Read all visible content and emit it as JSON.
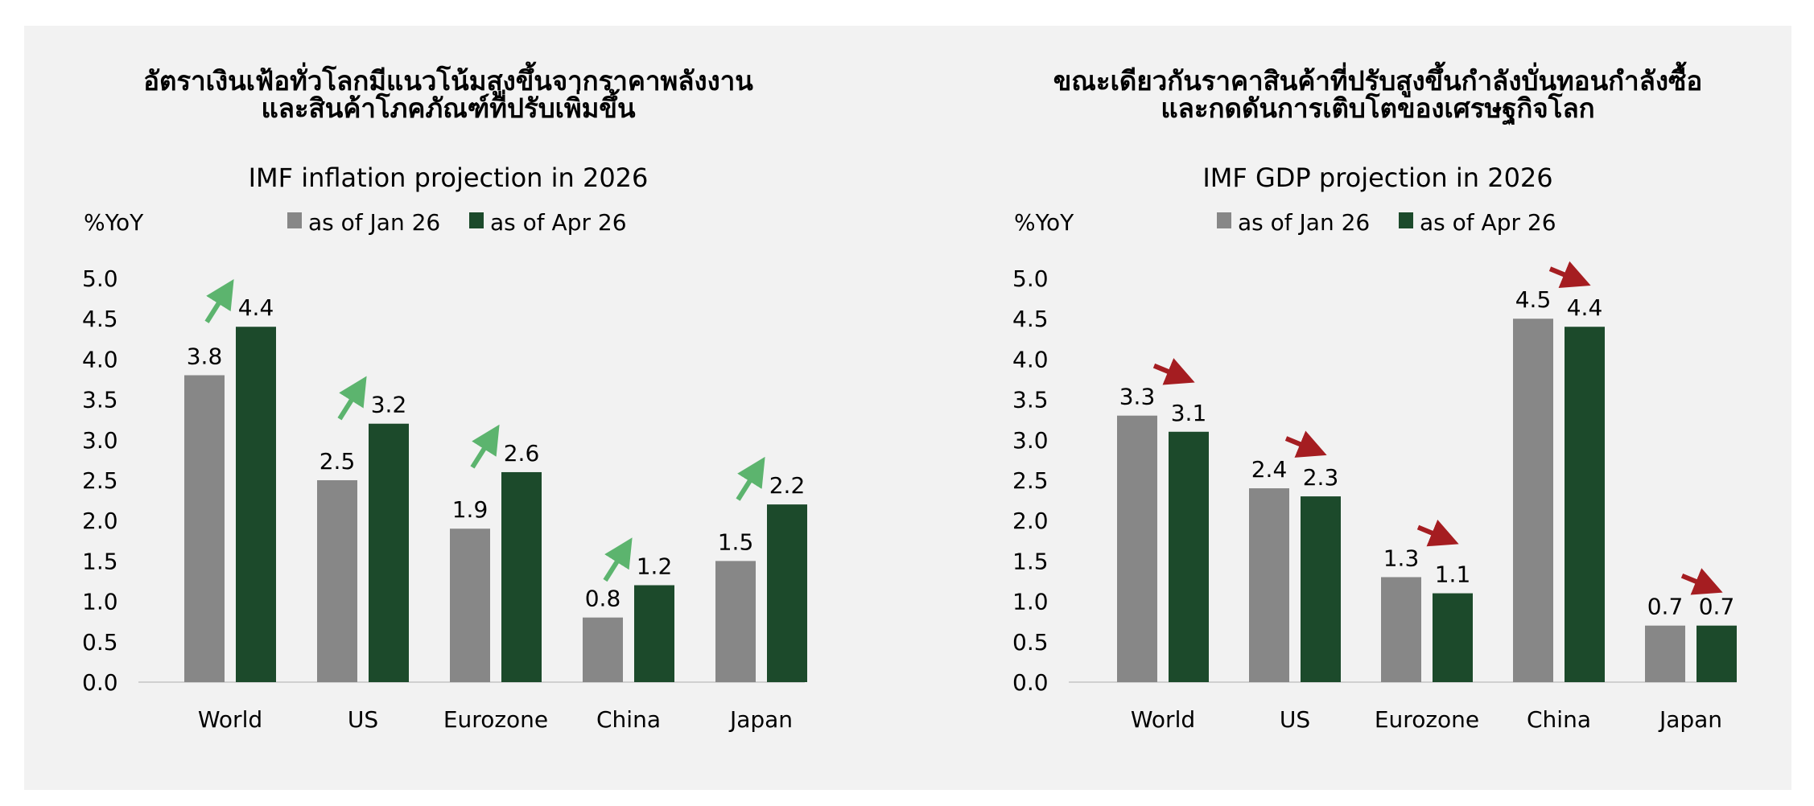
{
  "colors": {
    "background": "#f2f2f2",
    "jan": "#878787",
    "apr": "#1c4a2b",
    "arrow_up": "#5cb46e",
    "arrow_down": "#a51d21",
    "text": "#000000",
    "axis": "#d0d0d0"
  },
  "panels": [
    {
      "heading_lines": [
        "อัตราเงินเฟ้อทั่วโลกมีแนวโน้มสูงขึ้นจากราคาพลังงาน",
        "และสินค้าโภคภัณฑ์ที่ปรับเพิ่มขึ้น"
      ],
      "trend": "up"
    },
    {
      "heading_lines": [
        "ขณะเดียวกันราคาสินค้าที่ปรับสูงขึ้นกำลังบั่นทอนกำลังซื้อ",
        "และกดดันการเติบโตของเศรษฐกิจโลก"
      ],
      "trend": "down"
    }
  ],
  "chart_data": [
    {
      "type": "bar",
      "title": "IMF inflation projection in 2026",
      "ylabel": "%YoY",
      "categories": [
        "World",
        "US",
        "Eurozone",
        "China",
        "Japan"
      ],
      "series": [
        {
          "name": "as of Jan 26",
          "values": [
            3.8,
            2.5,
            1.9,
            0.8,
            1.5
          ]
        },
        {
          "name": "as of Apr 26",
          "values": [
            4.4,
            3.2,
            2.6,
            1.2,
            2.2
          ]
        }
      ],
      "ylim": [
        0,
        5.0
      ],
      "yticks": [
        "0.0",
        "0.5",
        "1.0",
        "1.5",
        "2.0",
        "2.5",
        "3.0",
        "3.5",
        "4.0",
        "4.5",
        "5.0"
      ],
      "grid": false,
      "legend": "top"
    },
    {
      "type": "bar",
      "title": "IMF GDP projection in 2026",
      "ylabel": "%YoY",
      "categories": [
        "World",
        "US",
        "Eurozone",
        "China",
        "Japan"
      ],
      "series": [
        {
          "name": "as of Jan 26",
          "values": [
            3.3,
            2.4,
            1.3,
            4.5,
            0.7
          ]
        },
        {
          "name": "as of Apr 26",
          "values": [
            3.1,
            2.3,
            1.1,
            4.4,
            0.7
          ]
        }
      ],
      "ylim": [
        0,
        5.0
      ],
      "yticks": [
        "0.0",
        "0.5",
        "1.0",
        "1.5",
        "2.0",
        "2.5",
        "3.0",
        "3.5",
        "4.0",
        "4.5",
        "5.0"
      ],
      "grid": false,
      "legend": "top"
    }
  ]
}
